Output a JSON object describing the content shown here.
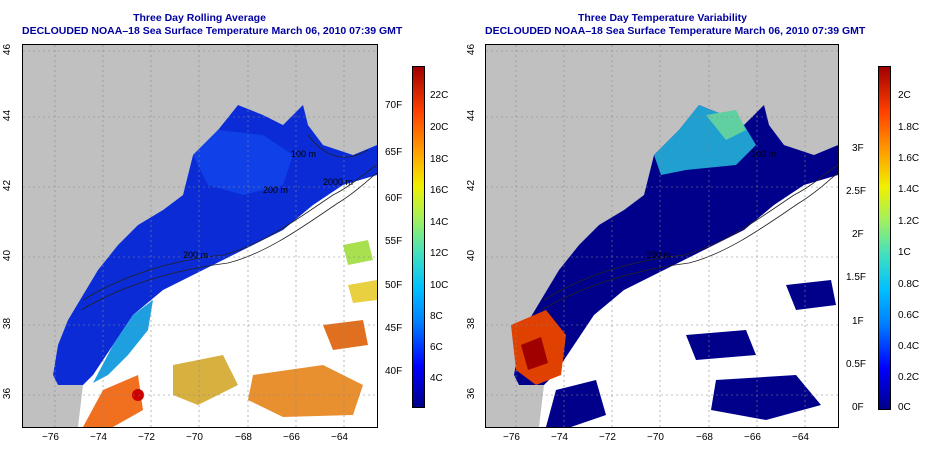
{
  "left_panel": {
    "title": "Three Day Rolling Average",
    "subtitle": "DECLOUDED NOAA–18 Sea Surface Temperature March 06, 2010 07:39 GMT",
    "x_ticks": [
      "−76",
      "−74",
      "−72",
      "−70",
      "−68",
      "−66",
      "−64"
    ],
    "y_ticks": [
      "46",
      "44",
      "42",
      "40",
      "38",
      "36"
    ],
    "contour_labels": [
      "100 m",
      "200 m",
      "2000 m",
      "200 m"
    ],
    "colorbar": {
      "celsius": [
        "22C",
        "20C",
        "18C",
        "16C",
        "14C",
        "12C",
        "10C",
        "8C",
        "6C",
        "4C"
      ],
      "fahrenheit": [
        "70F",
        "65F",
        "60F",
        "55F",
        "50F",
        "45F",
        "40F"
      ]
    }
  },
  "right_panel": {
    "title": "Three Day Temperature Variability",
    "subtitle": "DECLOUDED NOAA–18 Sea Surface Temperature March 06, 2010 07:39 GMT",
    "x_ticks": [
      "−76",
      "−74",
      "−72",
      "−70",
      "−68",
      "−66",
      "−64"
    ],
    "y_ticks": [
      "46",
      "44",
      "42",
      "40",
      "38",
      "36"
    ],
    "contour_labels": [
      "100 m",
      "200 m"
    ],
    "colorbar": {
      "celsius": [
        "2C",
        "1.8C",
        "1.6C",
        "1.4C",
        "1.2C",
        "1C",
        "0.8C",
        "0.6C",
        "0.4C",
        "0.2C",
        "0C"
      ],
      "fahrenheit": [
        "3F",
        "2.5F",
        "2F",
        "1.5F",
        "1F",
        "0.5F",
        "0F"
      ]
    }
  },
  "colors": {
    "title": "#0000a0",
    "land": "#c0c0c0",
    "ocean_nodata": "#ffffff",
    "cold": "#0a2bd6",
    "variability_low": "#00008b"
  }
}
